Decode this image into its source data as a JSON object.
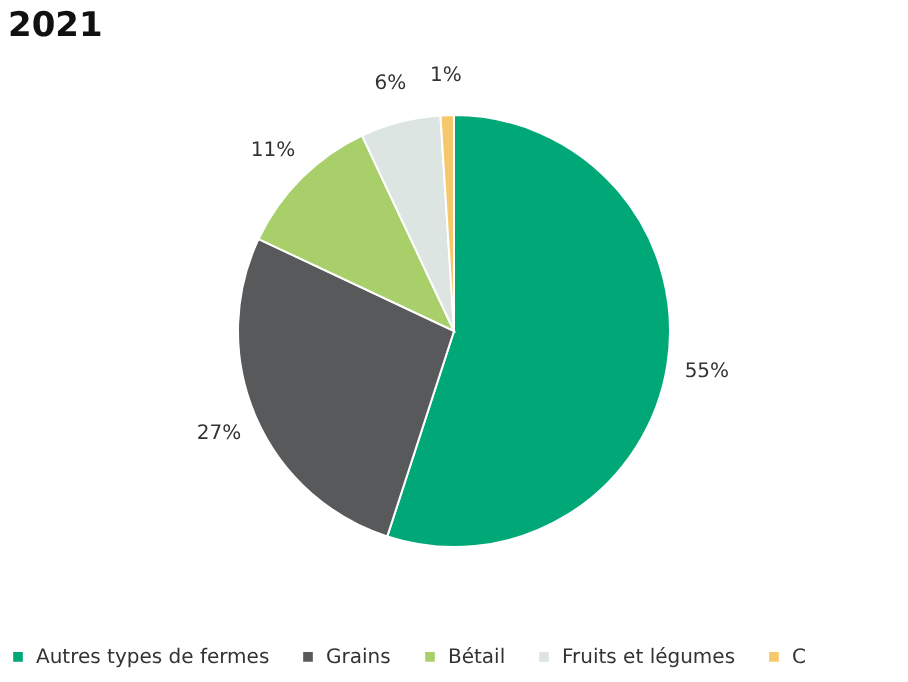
{
  "chart_data": {
    "type": "pie",
    "title": "2021",
    "categories": [
      "Autres types de fermes",
      "Grains",
      "Bétail",
      "Fruits et légumes",
      "C"
    ],
    "values": [
      55,
      27,
      11,
      6,
      1
    ],
    "value_labels": [
      "55%",
      "27%",
      "11%",
      "6%",
      "1%"
    ],
    "colors": [
      "#00a878",
      "#58595b",
      "#a8cf6a",
      "#dde5e3",
      "#f5c96b"
    ],
    "legend": "bottom"
  }
}
